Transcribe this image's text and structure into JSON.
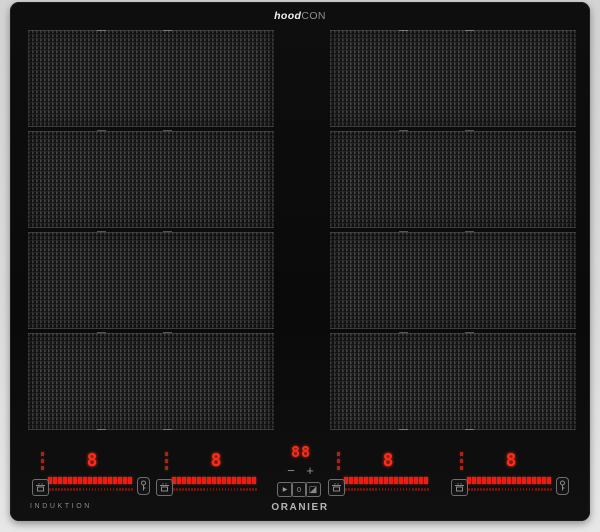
{
  "header": {
    "brand_bold": "hood",
    "brand_light": "CON"
  },
  "footer": {
    "type_label": "INDUKTION",
    "brand": "ORANIER"
  },
  "colors": {
    "led_red": "#ff2a1a",
    "led_dim": "#7e150e",
    "icon_grey": "#9a9a9a",
    "panel_black": "#0b0b0b",
    "background_grey": "#d8d8d8"
  },
  "cooking_area": {
    "columns": 2,
    "rows_per_column": 4
  },
  "zones": [
    {
      "name": "zone-1",
      "power": "8",
      "timer_stack": [
        "8",
        "8",
        "8"
      ],
      "segments": 17,
      "dots": 28,
      "pot_icon": true,
      "lock_icon": true
    },
    {
      "name": "zone-2",
      "power": "8",
      "timer_stack": [
        "8",
        "8",
        "8"
      ],
      "segments": 17,
      "dots": 28,
      "pot_icon": true,
      "lock_icon": false
    },
    {
      "name": "zone-3",
      "power": "8",
      "timer_stack": [
        "8",
        "8",
        "8"
      ],
      "segments": 17,
      "dots": 28,
      "pot_icon": true,
      "lock_icon": false
    },
    {
      "name": "zone-4",
      "power": "8",
      "timer_stack": [
        "8",
        "8",
        "8"
      ],
      "segments": 17,
      "dots": 28,
      "pot_icon": true,
      "lock_icon": true
    }
  ],
  "center_console": {
    "display": "88",
    "minus": "−",
    "plus": "+",
    "buttons": [
      {
        "name": "pause-play-button",
        "glyph": "▶"
      },
      {
        "name": "timer-button",
        "glyph": "0"
      },
      {
        "name": "bridge-zone-button",
        "glyph": "◪"
      }
    ]
  }
}
